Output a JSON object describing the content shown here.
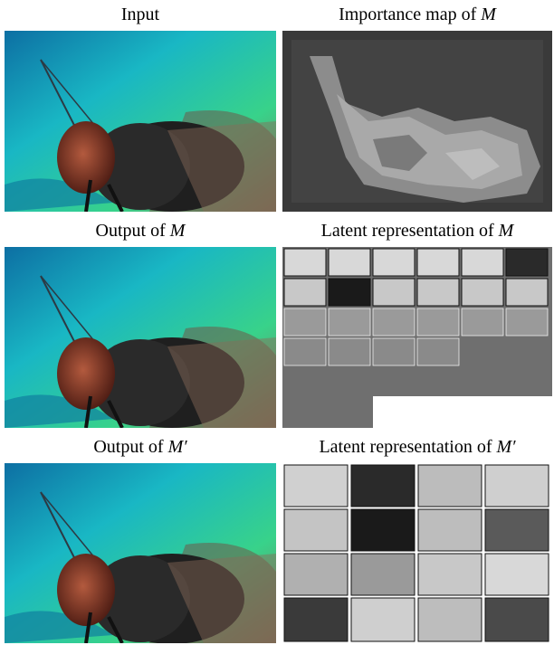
{
  "figure": {
    "rows": [
      {
        "left_caption": {
          "text": "Input",
          "symbol": ""
        },
        "right_caption": {
          "text": "Importance map of ",
          "symbol": "M"
        }
      },
      {
        "left_caption": {
          "text": "Output of ",
          "symbol": "M"
        },
        "right_caption": {
          "text": "Latent representation of ",
          "symbol": "M"
        }
      },
      {
        "left_caption": {
          "text": "Output of ",
          "symbol": "M′"
        },
        "right_caption": {
          "text": "Latent representation of ",
          "symbol": "M′"
        }
      }
    ]
  },
  "colors": {
    "background": "#ffffff",
    "importance_dark": "#3a3a3a",
    "importance_light": "#bdbdbd",
    "latent_gray": "#6f6f6f",
    "fly_body": "#2a2a2a",
    "fly_eye": "#8a3a2a",
    "bg_teal": "#19b7c4",
    "bg_green": "#38d28a"
  }
}
